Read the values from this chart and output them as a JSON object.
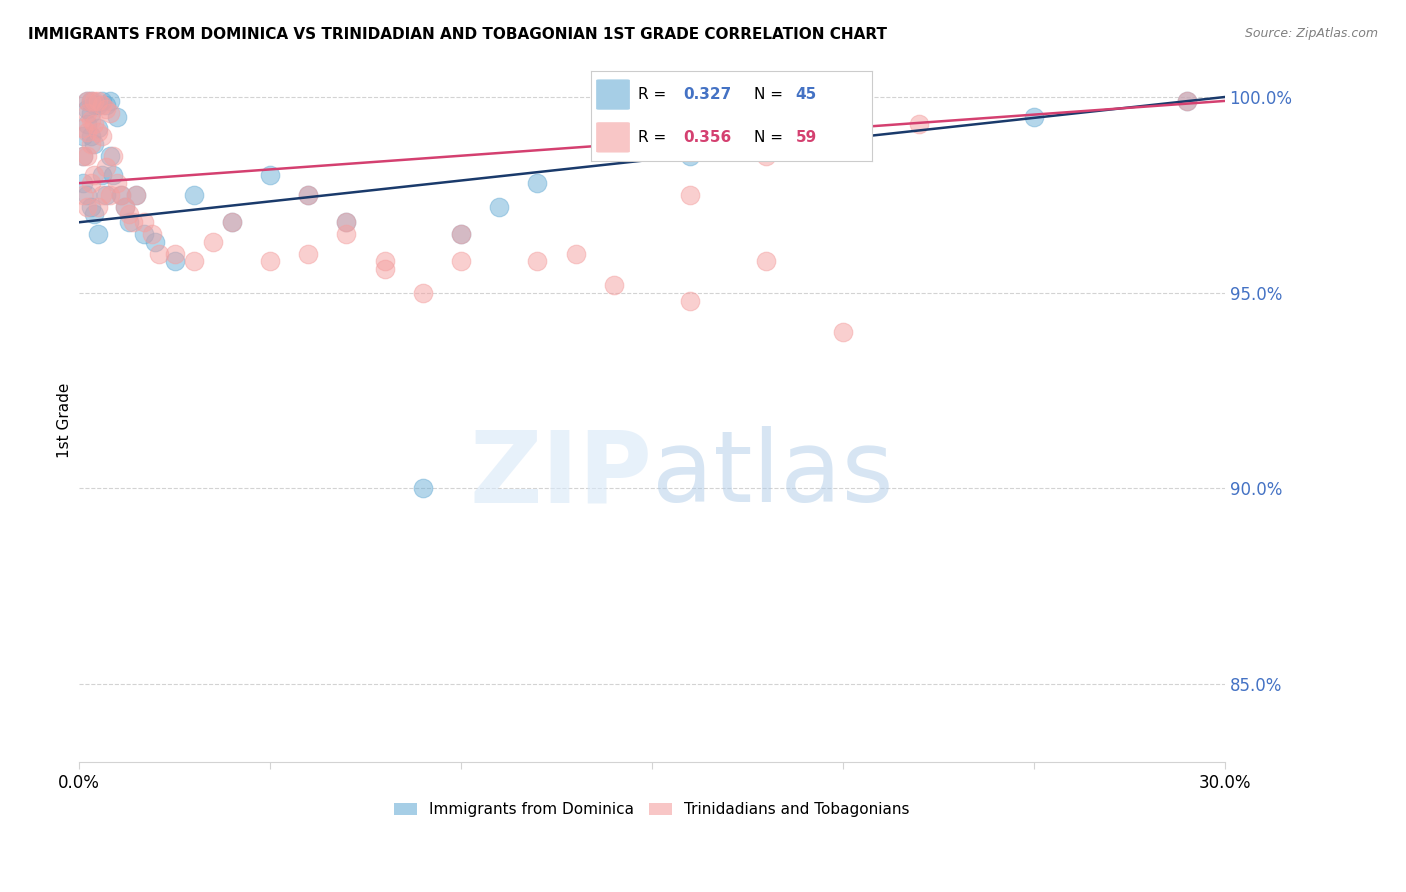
{
  "title": "IMMIGRANTS FROM DOMINICA VS TRINIDADIAN AND TOBAGONIAN 1ST GRADE CORRELATION CHART",
  "source": "Source: ZipAtlas.com",
  "ylabel": "1st Grade",
  "xlim": [
    0.0,
    0.3
  ],
  "ylim": [
    0.83,
    1.005
  ],
  "yticks": [
    0.85,
    0.9,
    0.95,
    1.0
  ],
  "ytick_labels": [
    "85.0%",
    "90.0%",
    "95.0%",
    "100.0%"
  ],
  "xticks": [
    0.0,
    0.05,
    0.1,
    0.15,
    0.2,
    0.25,
    0.3
  ],
  "blue_R": 0.327,
  "blue_N": 45,
  "pink_R": 0.356,
  "pink_N": 59,
  "blue_color": "#6baed6",
  "pink_color": "#f4a0a0",
  "blue_line_color": "#1a3a6b",
  "pink_line_color": "#d44070",
  "legend_blue_label": "Immigrants from Dominica",
  "legend_pink_label": "Trinidadians and Tobagonians",
  "blue_x": [
    0.001,
    0.001,
    0.001,
    0.002,
    0.002,
    0.002,
    0.002,
    0.003,
    0.003,
    0.003,
    0.003,
    0.004,
    0.004,
    0.004,
    0.005,
    0.005,
    0.005,
    0.006,
    0.006,
    0.007,
    0.007,
    0.008,
    0.008,
    0.009,
    0.01,
    0.011,
    0.012,
    0.013,
    0.015,
    0.017,
    0.02,
    0.025,
    0.03,
    0.04,
    0.05,
    0.06,
    0.07,
    0.09,
    0.1,
    0.11,
    0.12,
    0.16,
    0.2,
    0.25,
    0.29
  ],
  "blue_y": [
    0.99,
    0.985,
    0.978,
    0.999,
    0.997,
    0.993,
    0.975,
    0.999,
    0.996,
    0.99,
    0.972,
    0.998,
    0.988,
    0.97,
    0.998,
    0.992,
    0.965,
    0.999,
    0.98,
    0.998,
    0.975,
    0.999,
    0.985,
    0.98,
    0.995,
    0.975,
    0.972,
    0.968,
    0.975,
    0.965,
    0.963,
    0.958,
    0.975,
    0.968,
    0.98,
    0.975,
    0.968,
    0.9,
    0.965,
    0.972,
    0.978,
    0.985,
    0.99,
    0.995,
    0.999
  ],
  "pink_x": [
    0.001,
    0.001,
    0.001,
    0.002,
    0.002,
    0.002,
    0.002,
    0.002,
    0.003,
    0.003,
    0.003,
    0.003,
    0.004,
    0.004,
    0.004,
    0.005,
    0.005,
    0.005,
    0.006,
    0.006,
    0.006,
    0.007,
    0.007,
    0.008,
    0.008,
    0.009,
    0.01,
    0.011,
    0.012,
    0.013,
    0.014,
    0.015,
    0.017,
    0.019,
    0.021,
    0.025,
    0.03,
    0.035,
    0.04,
    0.05,
    0.06,
    0.07,
    0.08,
    0.09,
    0.1,
    0.12,
    0.14,
    0.16,
    0.18,
    0.2,
    0.06,
    0.07,
    0.08,
    0.1,
    0.13,
    0.16,
    0.18,
    0.22,
    0.29
  ],
  "pink_y": [
    0.992,
    0.985,
    0.975,
    0.999,
    0.996,
    0.991,
    0.985,
    0.972,
    0.999,
    0.994,
    0.988,
    0.978,
    0.999,
    0.993,
    0.98,
    0.999,
    0.991,
    0.972,
    0.998,
    0.99,
    0.975,
    0.997,
    0.982,
    0.996,
    0.975,
    0.985,
    0.978,
    0.975,
    0.972,
    0.97,
    0.968,
    0.975,
    0.968,
    0.965,
    0.96,
    0.96,
    0.958,
    0.963,
    0.968,
    0.958,
    0.96,
    0.965,
    0.956,
    0.95,
    0.958,
    0.958,
    0.952,
    0.948,
    0.958,
    0.94,
    0.975,
    0.968,
    0.958,
    0.965,
    0.96,
    0.975,
    0.985,
    0.993,
    0.999
  ]
}
